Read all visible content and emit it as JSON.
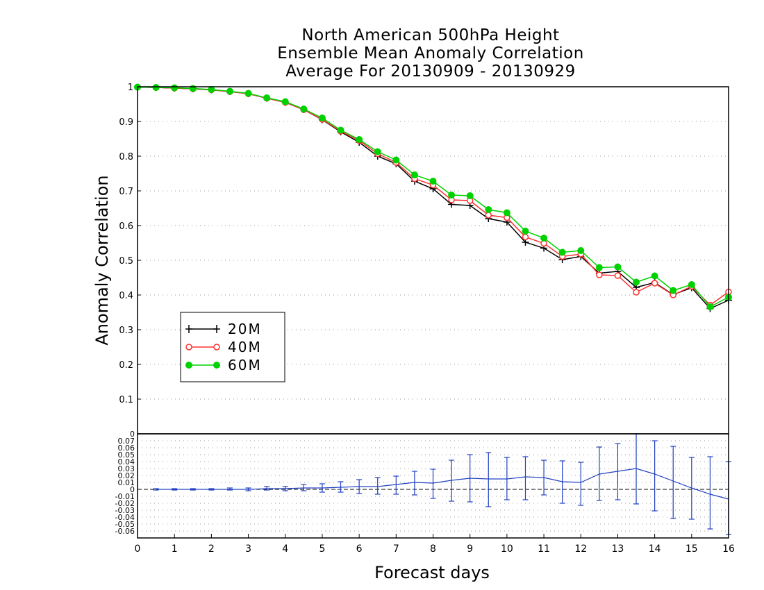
{
  "chart_data": [
    {
      "type": "line",
      "title": [
        "North American 500hPa Height",
        "Ensemble Mean Anomaly Correlation",
        "Average For 20130909 - 20130929"
      ],
      "xlabel": "Forecast days",
      "ylabel": "Anomaly Correlation",
      "xlim": [
        0,
        16
      ],
      "ylim": [
        0,
        1
      ],
      "x_ticks": [
        "0",
        "1",
        "2",
        "3",
        "4",
        "5",
        "6",
        "7",
        "8",
        "9",
        "10",
        "11",
        "12",
        "13",
        "14",
        "15",
        "16"
      ],
      "y_ticks": [
        "0.1",
        "0.2",
        "0.3",
        "0.4",
        "0.5",
        "0.6",
        "0.7",
        "0.8",
        "0.9",
        "1"
      ],
      "grid": "dotted horizontal",
      "legend_position": "left-middle",
      "x": [
        0,
        0.5,
        1,
        1.5,
        2,
        2.5,
        3,
        3.5,
        4,
        4.5,
        5,
        5.5,
        6,
        6.5,
        7,
        7.5,
        8,
        8.5,
        9,
        9.5,
        10,
        10.5,
        11,
        11.5,
        12,
        12.5,
        13,
        13.5,
        14,
        14.5,
        15,
        15.5,
        16
      ],
      "series": [
        {
          "name": "20M",
          "color": "#000000",
          "marker": "plus",
          "values": [
            0.999,
            0.998,
            0.996,
            0.994,
            0.991,
            0.986,
            0.98,
            0.967,
            0.955,
            0.934,
            0.905,
            0.87,
            0.84,
            0.8,
            0.778,
            0.728,
            0.706,
            0.661,
            0.658,
            0.62,
            0.61,
            0.552,
            0.535,
            0.502,
            0.511,
            0.463,
            0.468,
            0.422,
            0.436,
            0.401,
            0.421,
            0.361,
            0.385
          ]
        },
        {
          "name": "40M",
          "color": "#ff3030",
          "marker": "open-circle",
          "values": [
            0.999,
            0.998,
            0.996,
            0.994,
            0.991,
            0.986,
            0.98,
            0.967,
            0.955,
            0.934,
            0.906,
            0.872,
            0.845,
            0.807,
            0.782,
            0.735,
            0.717,
            0.674,
            0.672,
            0.63,
            0.623,
            0.567,
            0.549,
            0.511,
            0.518,
            0.458,
            0.456,
            0.408,
            0.434,
            0.4,
            0.425,
            0.371,
            0.409
          ]
        },
        {
          "name": "60M",
          "color": "#00d200",
          "marker": "filled-circle",
          "values": [
            0.999,
            0.998,
            0.997,
            0.995,
            0.992,
            0.987,
            0.981,
            0.968,
            0.957,
            0.936,
            0.91,
            0.875,
            0.848,
            0.813,
            0.789,
            0.746,
            0.728,
            0.688,
            0.686,
            0.646,
            0.637,
            0.584,
            0.564,
            0.523,
            0.528,
            0.479,
            0.481,
            0.437,
            0.455,
            0.413,
            0.43,
            0.366,
            0.394
          ]
        }
      ]
    },
    {
      "type": "line",
      "xlim": [
        0,
        16
      ],
      "ylim": [
        -0.07,
        0.08
      ],
      "y_ticks": [
        "0.07",
        "0.06",
        "0.05",
        "0.04",
        "0.03",
        "0.02",
        "0.01",
        "0",
        "-0.01",
        "-0.02",
        "-0.03",
        "-0.04",
        "-0.05",
        "-0.06"
      ],
      "top_tick": "0",
      "grid": "dotted horizontal",
      "zero_line": "dashed",
      "color": "#2040c0",
      "x": [
        0.5,
        1,
        1.5,
        2,
        2.5,
        3,
        3.5,
        4,
        4.5,
        5,
        5.5,
        6,
        6.5,
        7,
        7.5,
        8,
        8.5,
        9,
        9.5,
        10,
        10.5,
        11,
        11.5,
        12,
        12.5,
        13,
        13.5,
        14,
        14.5,
        15,
        15.5,
        16
      ],
      "mean": [
        0.0,
        0.0,
        0.0,
        0.0,
        0.0,
        0.0,
        0.001,
        0.001,
        0.002,
        0.002,
        0.003,
        0.004,
        0.004,
        0.007,
        0.01,
        0.009,
        0.013,
        0.016,
        0.015,
        0.015,
        0.018,
        0.017,
        0.011,
        0.01,
        0.022,
        0.026,
        0.03,
        0.022,
        0.012,
        0.002,
        -0.007,
        -0.014
      ],
      "err_high": [
        0.001,
        0.001,
        0.001,
        0.001,
        0.002,
        0.002,
        0.004,
        0.004,
        0.007,
        0.008,
        0.011,
        0.014,
        0.017,
        0.019,
        0.026,
        0.029,
        0.042,
        0.05,
        0.053,
        0.046,
        0.047,
        0.042,
        0.041,
        0.039,
        0.061,
        0.066,
        0.08,
        0.07,
        0.062,
        0.046,
        0.047,
        0.04
      ],
      "err_low": [
        -0.001,
        -0.001,
        -0.001,
        -0.001,
        -0.001,
        -0.002,
        -0.001,
        -0.002,
        -0.002,
        -0.004,
        -0.004,
        -0.006,
        -0.007,
        -0.007,
        -0.008,
        -0.013,
        -0.017,
        -0.018,
        -0.025,
        -0.015,
        -0.015,
        -0.008,
        -0.02,
        -0.023,
        -0.016,
        -0.015,
        -0.021,
        -0.031,
        -0.042,
        -0.043,
        -0.057,
        -0.065
      ]
    }
  ]
}
